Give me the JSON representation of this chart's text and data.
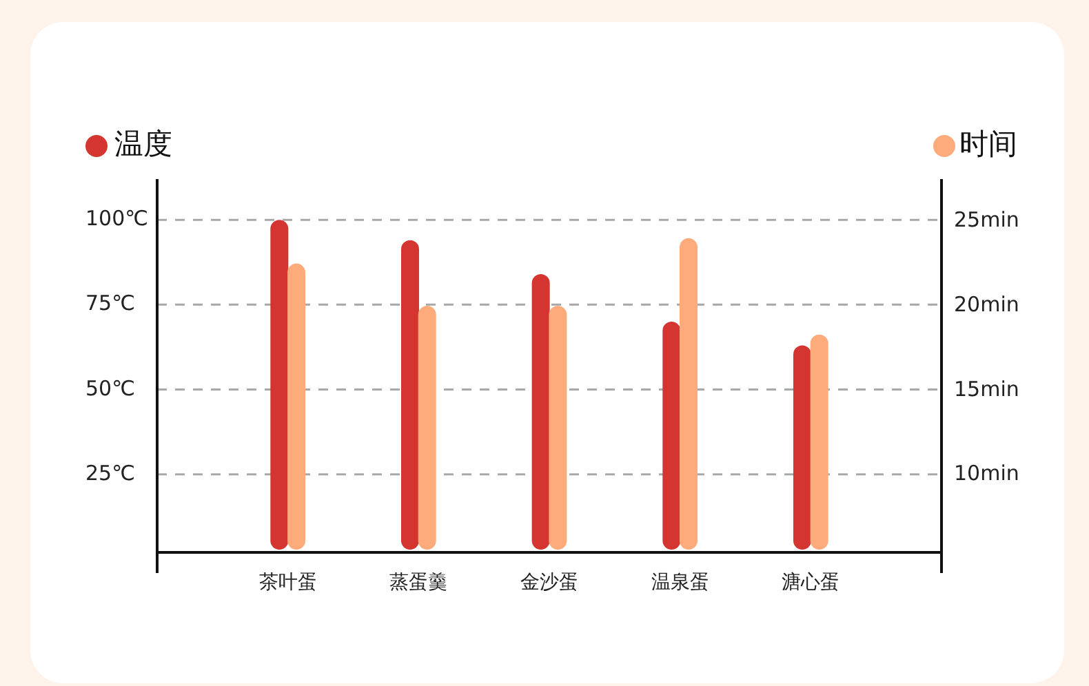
{
  "chart_data": {
    "type": "bar",
    "categories": [
      "茶叶蛋",
      "蒸蛋羹",
      "金沙蛋",
      "温泉蛋",
      "溏心蛋"
    ],
    "series": [
      {
        "name": "温度",
        "color": "#d43530",
        "values": [
          100,
          94,
          84,
          70,
          63
        ]
      },
      {
        "name": "时间",
        "color": "#fdab7b",
        "axis": "y2",
        "values": [
          22.5,
          20,
          20,
          24,
          18.3
        ]
      }
    ],
    "ylim": [
      2,
      112
    ],
    "yticks": [
      {
        "value": 25,
        "label": "25℃"
      },
      {
        "value": 50,
        "label": "50℃"
      },
      {
        "value": 75,
        "label": "75℃"
      },
      {
        "value": 100,
        "label": "100℃"
      }
    ],
    "y2lim": [
      5.4,
      27.5
    ],
    "y2ticks": [
      {
        "value": 10,
        "label": "10min"
      },
      {
        "value": 15,
        "label": "15min"
      },
      {
        "value": 20,
        "label": "20min"
      },
      {
        "value": 25,
        "label": "25min"
      }
    ],
    "grid": "y",
    "legend": "top"
  }
}
